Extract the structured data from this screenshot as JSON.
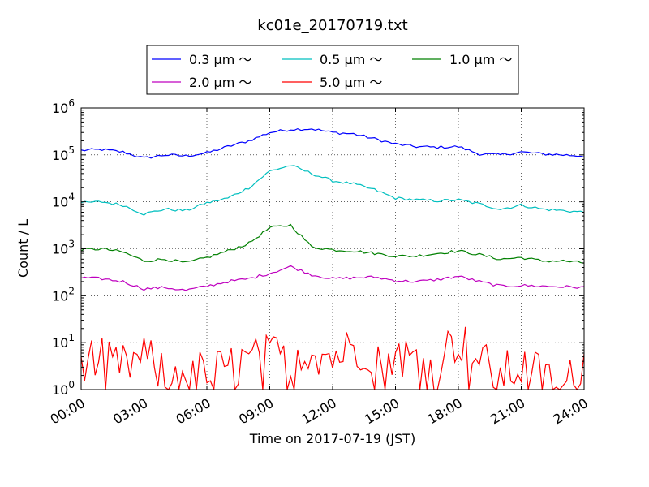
{
  "chart_data": {
    "type": "line",
    "title": "kc01e_20170719.txt",
    "xlabel": "Time on 2017-07-19 (JST)",
    "ylabel": "Count / L",
    "yscale": "log",
    "ylim": [
      1,
      1000000
    ],
    "xlim": [
      "00:00",
      "24:00"
    ],
    "xticks": [
      "00:00",
      "03:00",
      "06:00",
      "09:00",
      "12:00",
      "15:00",
      "18:00",
      "21:00",
      "24:00"
    ],
    "yticks": [
      {
        "base": "10",
        "exp": "0"
      },
      {
        "base": "10",
        "exp": "1"
      },
      {
        "base": "10",
        "exp": "2"
      },
      {
        "base": "10",
        "exp": "3"
      },
      {
        "base": "10",
        "exp": "4"
      },
      {
        "base": "10",
        "exp": "5"
      },
      {
        "base": "10",
        "exp": "6"
      }
    ],
    "grid": true,
    "legend_position": "top",
    "x": [
      "00:00",
      "01:00",
      "02:00",
      "03:00",
      "04:00",
      "05:00",
      "06:00",
      "07:00",
      "08:00",
      "09:00",
      "10:00",
      "11:00",
      "12:00",
      "13:00",
      "14:00",
      "15:00",
      "16:00",
      "17:00",
      "18:00",
      "19:00",
      "20:00",
      "21:00",
      "22:00",
      "23:00",
      "24:00"
    ],
    "series": [
      {
        "name": "0.3 μm ～",
        "color": "#0000ff",
        "values": [
          125000,
          130000,
          115000,
          85000,
          100000,
          95000,
          110000,
          150000,
          200000,
          300000,
          350000,
          360000,
          300000,
          280000,
          220000,
          170000,
          150000,
          145000,
          150000,
          105000,
          100000,
          115000,
          105000,
          100000,
          95000
        ]
      },
      {
        "name": "0.5 μm ～",
        "color": "#00bfbf",
        "values": [
          9500,
          10000,
          8500,
          5500,
          7000,
          6500,
          9500,
          12000,
          20000,
          45000,
          60000,
          40000,
          28000,
          24000,
          18000,
          12000,
          11000,
          10500,
          11000,
          9000,
          7000,
          8500,
          7000,
          6500,
          6000
        ]
      },
      {
        "name": "1.0 μm ～",
        "color": "#008000",
        "values": [
          950,
          1000,
          850,
          550,
          600,
          500,
          650,
          900,
          1300,
          2800,
          3200,
          1100,
          950,
          900,
          800,
          700,
          700,
          800,
          900,
          750,
          600,
          650,
          550,
          550,
          500
        ]
      },
      {
        "name": "2.0 μm ～",
        "color": "#bf00bf",
        "values": [
          240,
          230,
          200,
          140,
          150,
          130,
          160,
          200,
          230,
          300,
          420,
          280,
          230,
          240,
          250,
          210,
          200,
          220,
          260,
          200,
          160,
          165,
          160,
          155,
          150
        ]
      },
      {
        "name": "5.0 μm ～",
        "color": "#ff0000",
        "values": [
          5,
          4,
          3,
          5,
          2,
          3,
          2,
          3,
          4,
          5,
          6,
          7,
          5,
          8,
          7,
          6,
          4,
          5,
          12,
          4,
          2,
          3,
          2,
          1,
          4
        ]
      }
    ]
  }
}
